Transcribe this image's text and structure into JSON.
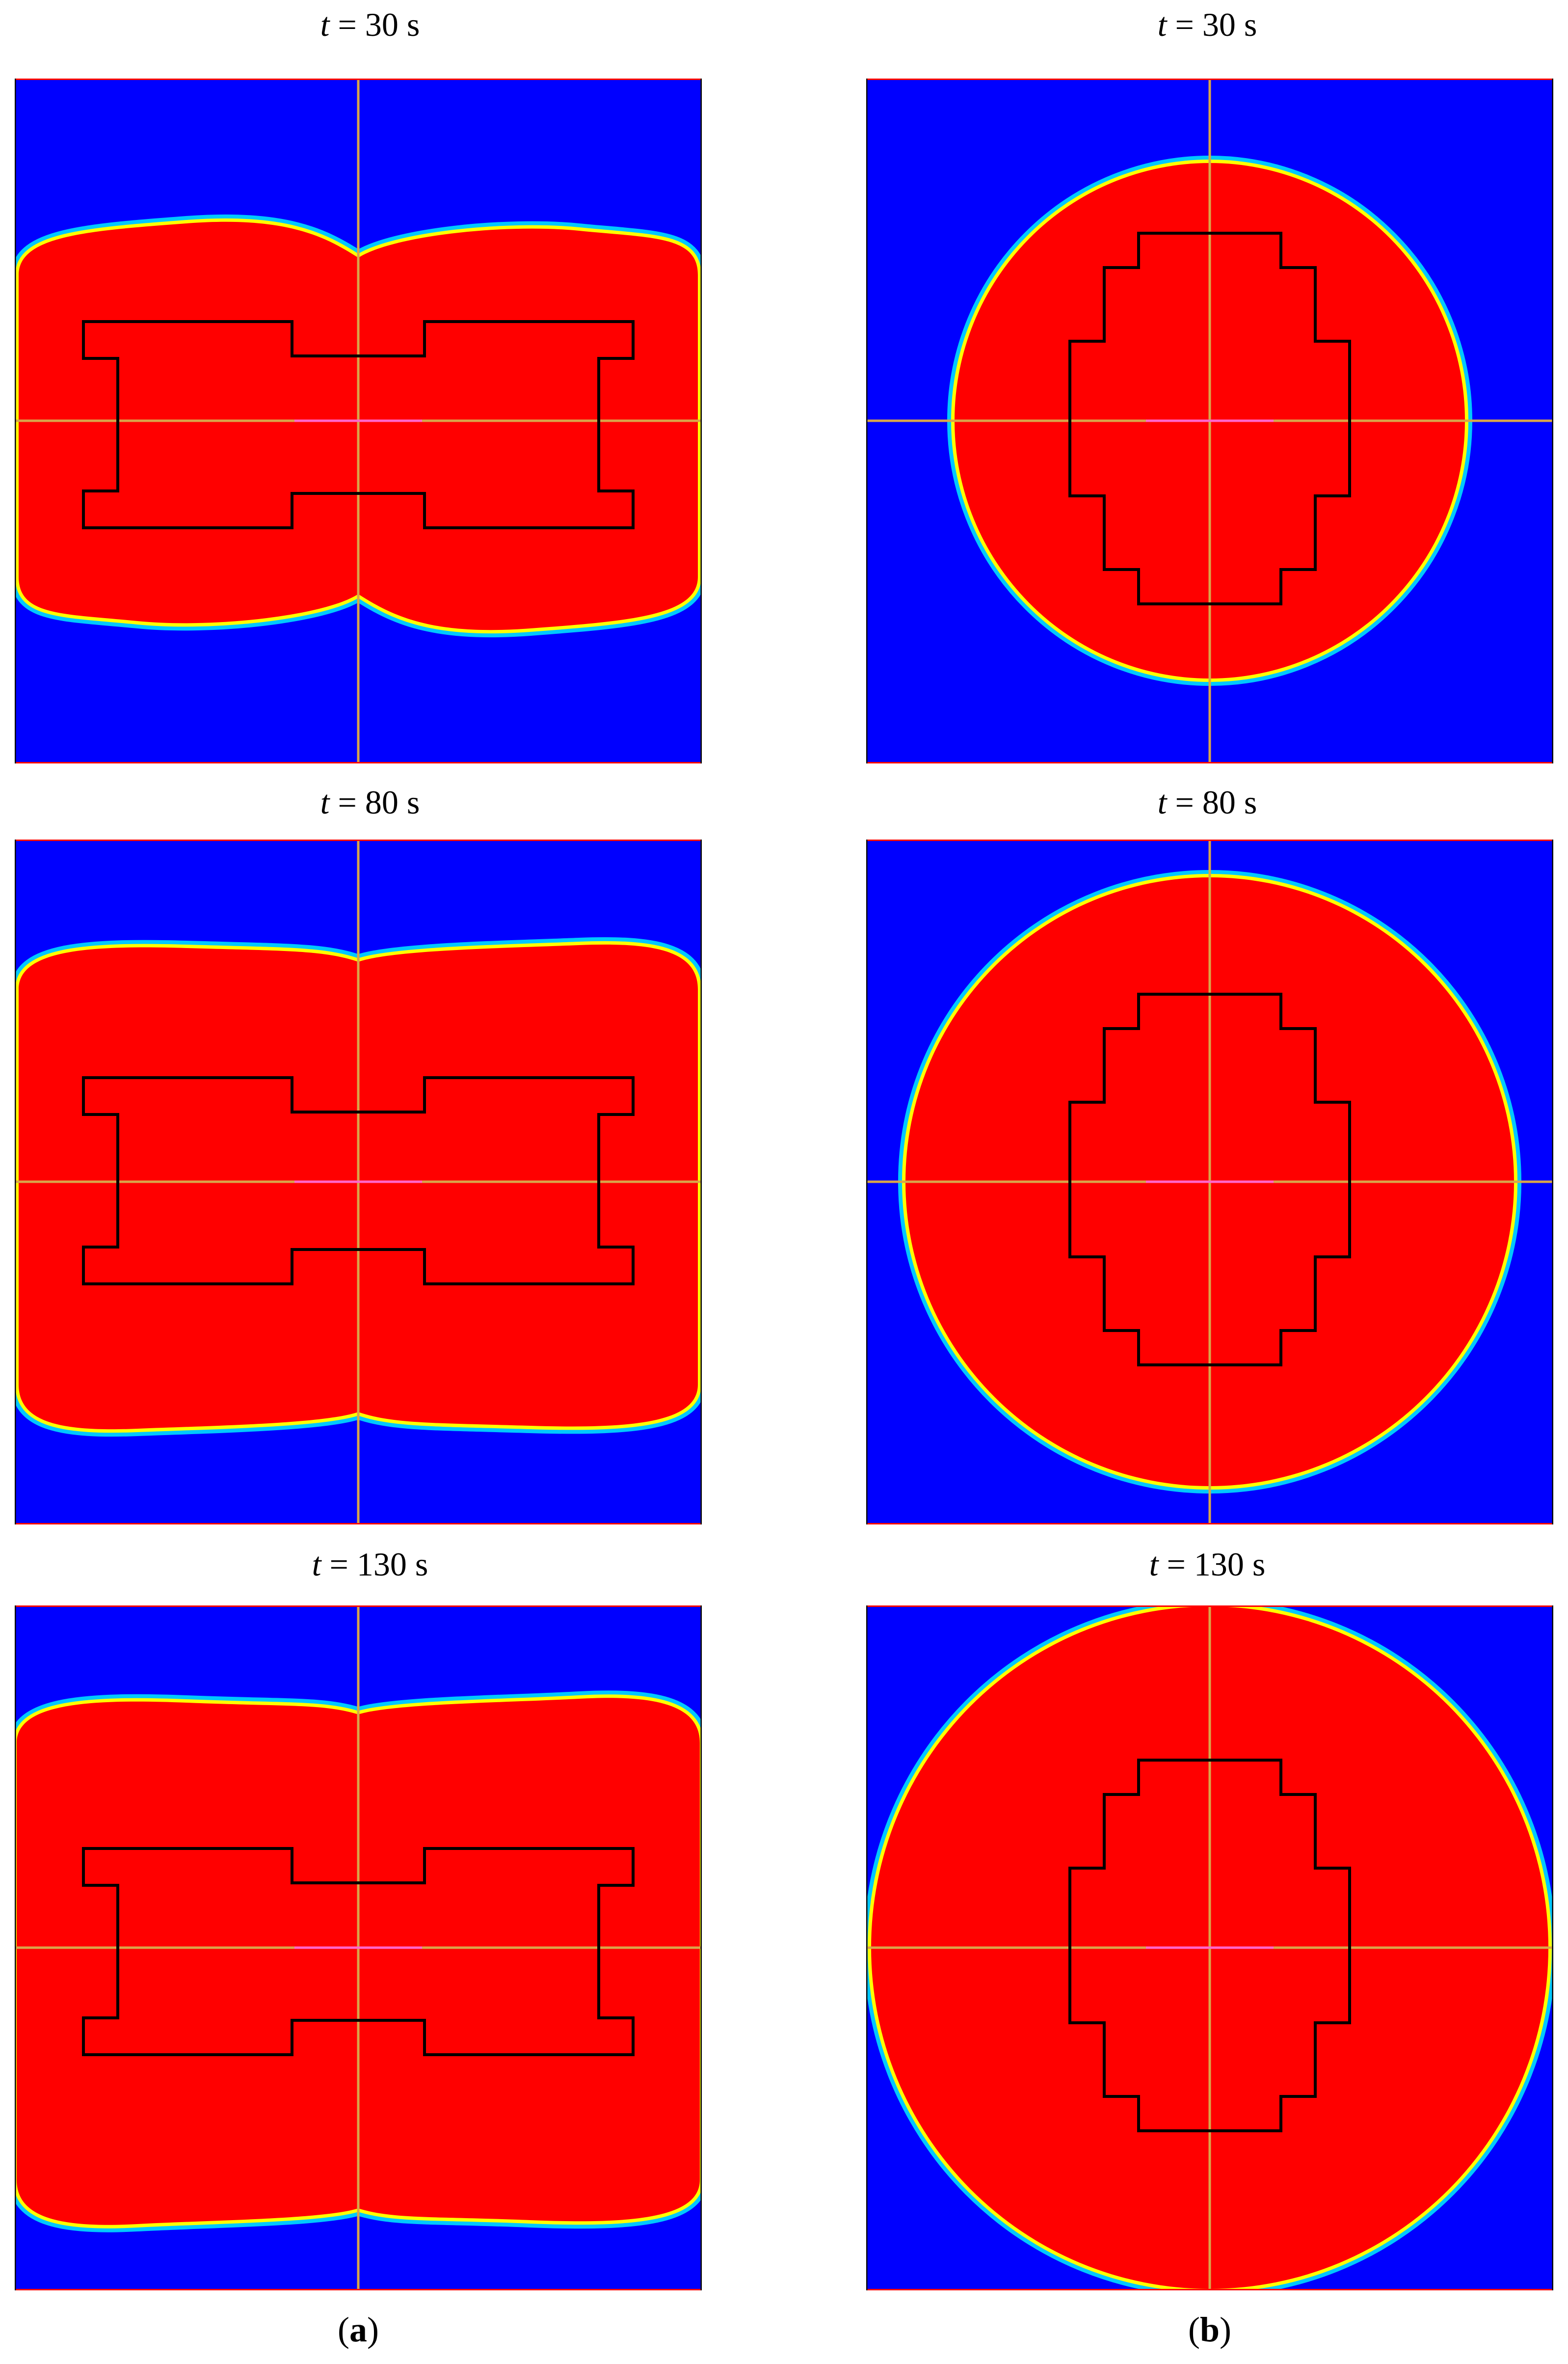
{
  "figure": {
    "colors": {
      "background_phase": "#0000ff",
      "filled_phase": "#ff0000",
      "interface_outer": "#00c8ff",
      "interface_inner": "#ffff00",
      "axis_line": "#d9a54a",
      "center_mark": "#ff66cc",
      "outline": "#000000",
      "frame_top_bottom": "#ff0000"
    },
    "rows": [
      {
        "time_label": "t",
        "time_value": "= 30 s"
      },
      {
        "time_label": "t",
        "time_value": "= 80 s"
      },
      {
        "time_label": "t",
        "time_value": "= 130 s"
      }
    ],
    "columns": [
      {
        "caption_open": "(",
        "caption_letter": "a",
        "caption_close": ")",
        "shape": "rectangular-front",
        "component_outline": "i-beam"
      },
      {
        "caption_open": "(",
        "caption_letter": "b",
        "caption_close": ")",
        "shape": "circular-front",
        "component_outline": "stepped-cross"
      }
    ]
  }
}
